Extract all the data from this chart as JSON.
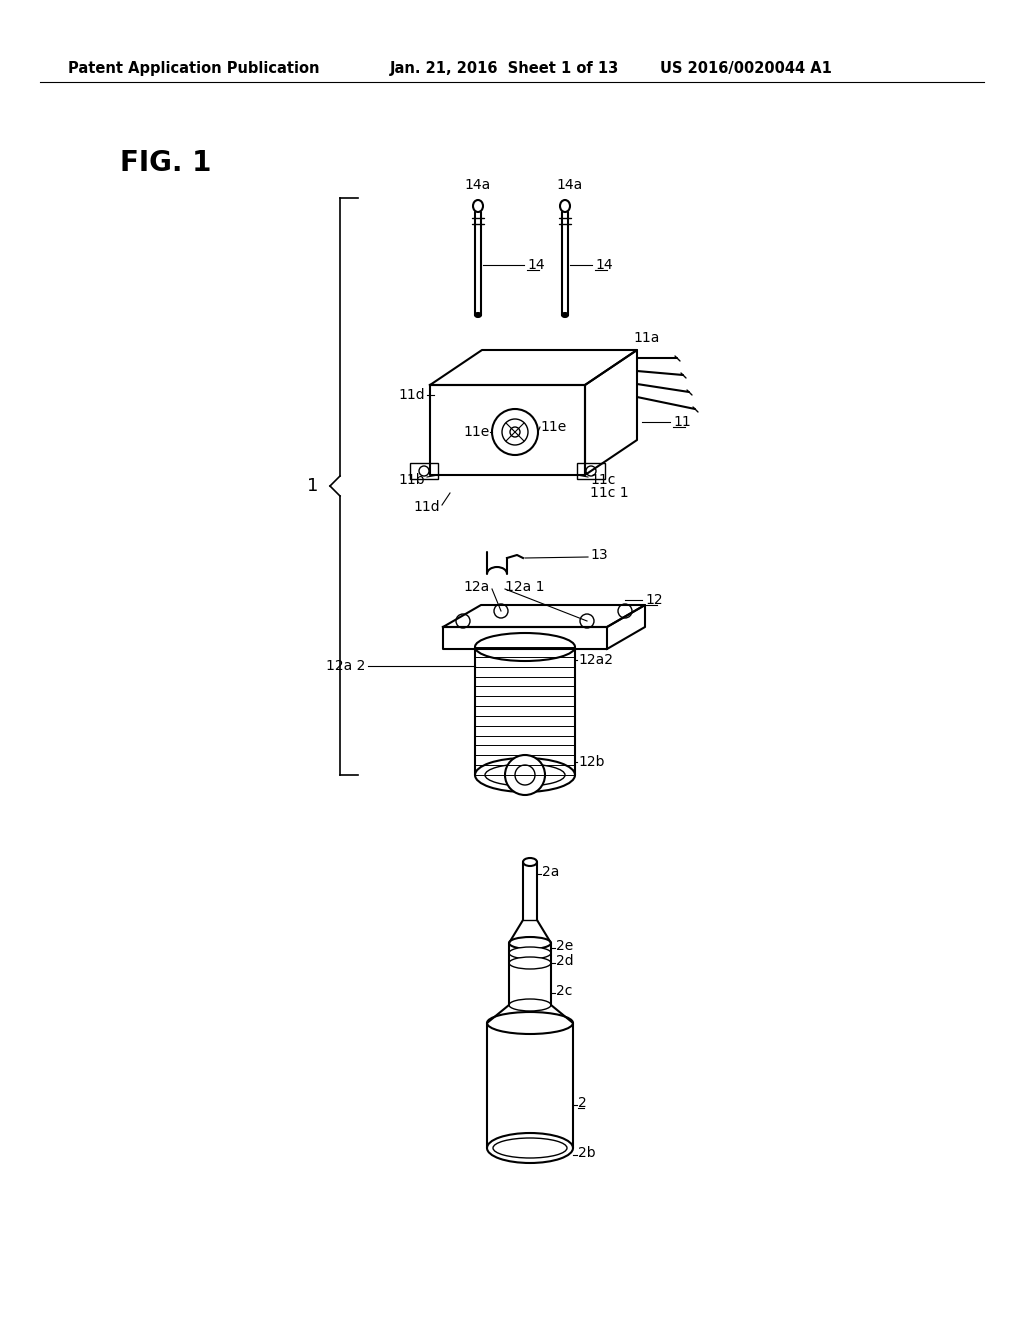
{
  "bg_color": "#ffffff",
  "line_color": "#000000",
  "header_left": "Patent Application Publication",
  "header_mid": "Jan. 21, 2016  Sheet 1 of 13",
  "header_right": "US 2016/0020044 A1",
  "fig_label": "FIG. 1",
  "title_fontsize": 16,
  "header_fontsize": 10.5,
  "label_fontsize": 10,
  "fig_width": 10.24,
  "fig_height": 13.2
}
